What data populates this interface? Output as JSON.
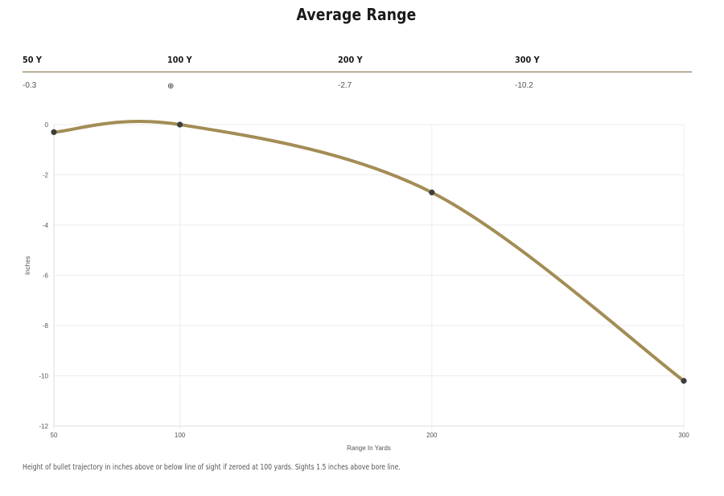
{
  "title": "Average Range",
  "table": {
    "headers": [
      "50 Y",
      "100 Y",
      "200 Y",
      "300 Y"
    ],
    "values": [
      "-0.3",
      "⊕",
      "-2.7",
      "-10.2"
    ],
    "zero_icon": "crosshair-icon"
  },
  "footnote": "Height of bullet trajectory in inches above or below line of sight if zeroed at 100 yards. Sights 1.5 inches above bore line.",
  "chart_data": {
    "type": "line",
    "xlabel": "Range In Yards",
    "ylabel": "Inches",
    "x": [
      50,
      100,
      200,
      300
    ],
    "series": [
      {
        "values": [
          -0.3,
          0,
          -2.7,
          -10.2
        ],
        "color": "#a38d55"
      }
    ],
    "x_ticks": [
      50,
      100,
      200,
      300
    ],
    "y_ticks": [
      0,
      -2,
      -4,
      -6,
      -8,
      -10,
      -12
    ],
    "xlim": [
      50,
      300
    ],
    "ylim": [
      -12,
      0
    ],
    "grid": true,
    "point_color": "#3d3d3d"
  }
}
